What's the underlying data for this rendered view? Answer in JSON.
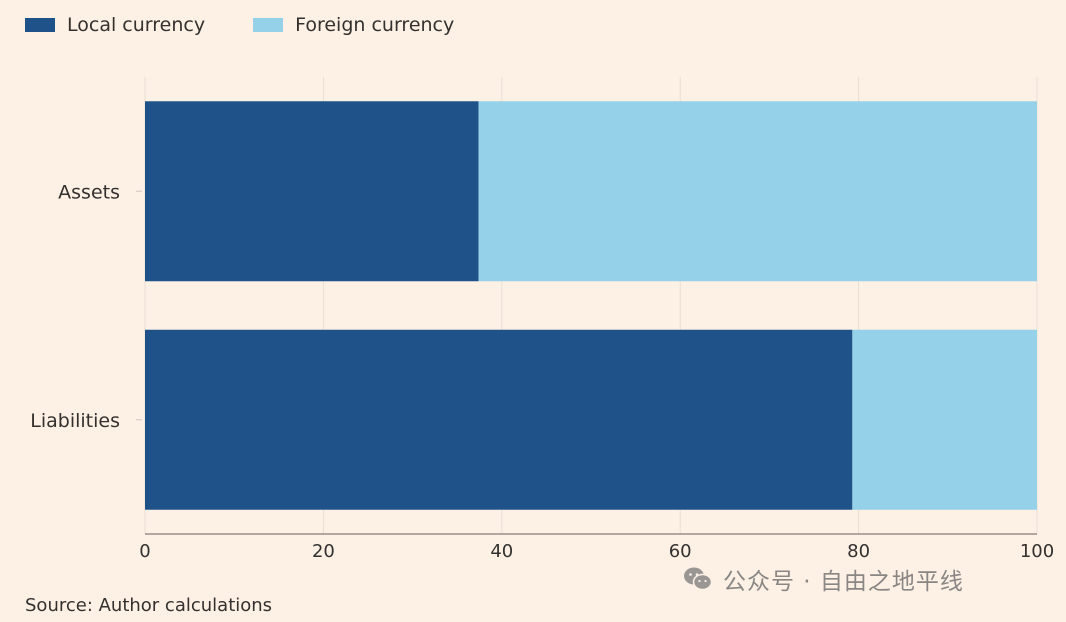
{
  "legend": {
    "items": [
      {
        "label": "Local currency",
        "color": "#1f5289"
      },
      {
        "label": "Foreign currency",
        "color": "#95d1e8"
      }
    ]
  },
  "source": "Source: Author calculations",
  "watermark": {
    "icon": "wechat-icon",
    "text": "公众号 · 自由之地平线"
  },
  "chart_data": {
    "type": "bar",
    "orientation": "horizontal",
    "stacked": true,
    "categories": [
      "Assets",
      "Liabilities"
    ],
    "series": [
      {
        "name": "Local currency",
        "values": [
          37.4,
          79.3
        ],
        "color": "#1f5289"
      },
      {
        "name": "Foreign currency",
        "values": [
          62.6,
          20.7
        ],
        "color": "#95d1e8"
      }
    ],
    "xticks": [
      0,
      20,
      40,
      60,
      80,
      100
    ],
    "xlim": [
      0,
      100
    ],
    "xlabel": "",
    "ylabel": "",
    "grid": true,
    "legend_position": "top-left"
  }
}
